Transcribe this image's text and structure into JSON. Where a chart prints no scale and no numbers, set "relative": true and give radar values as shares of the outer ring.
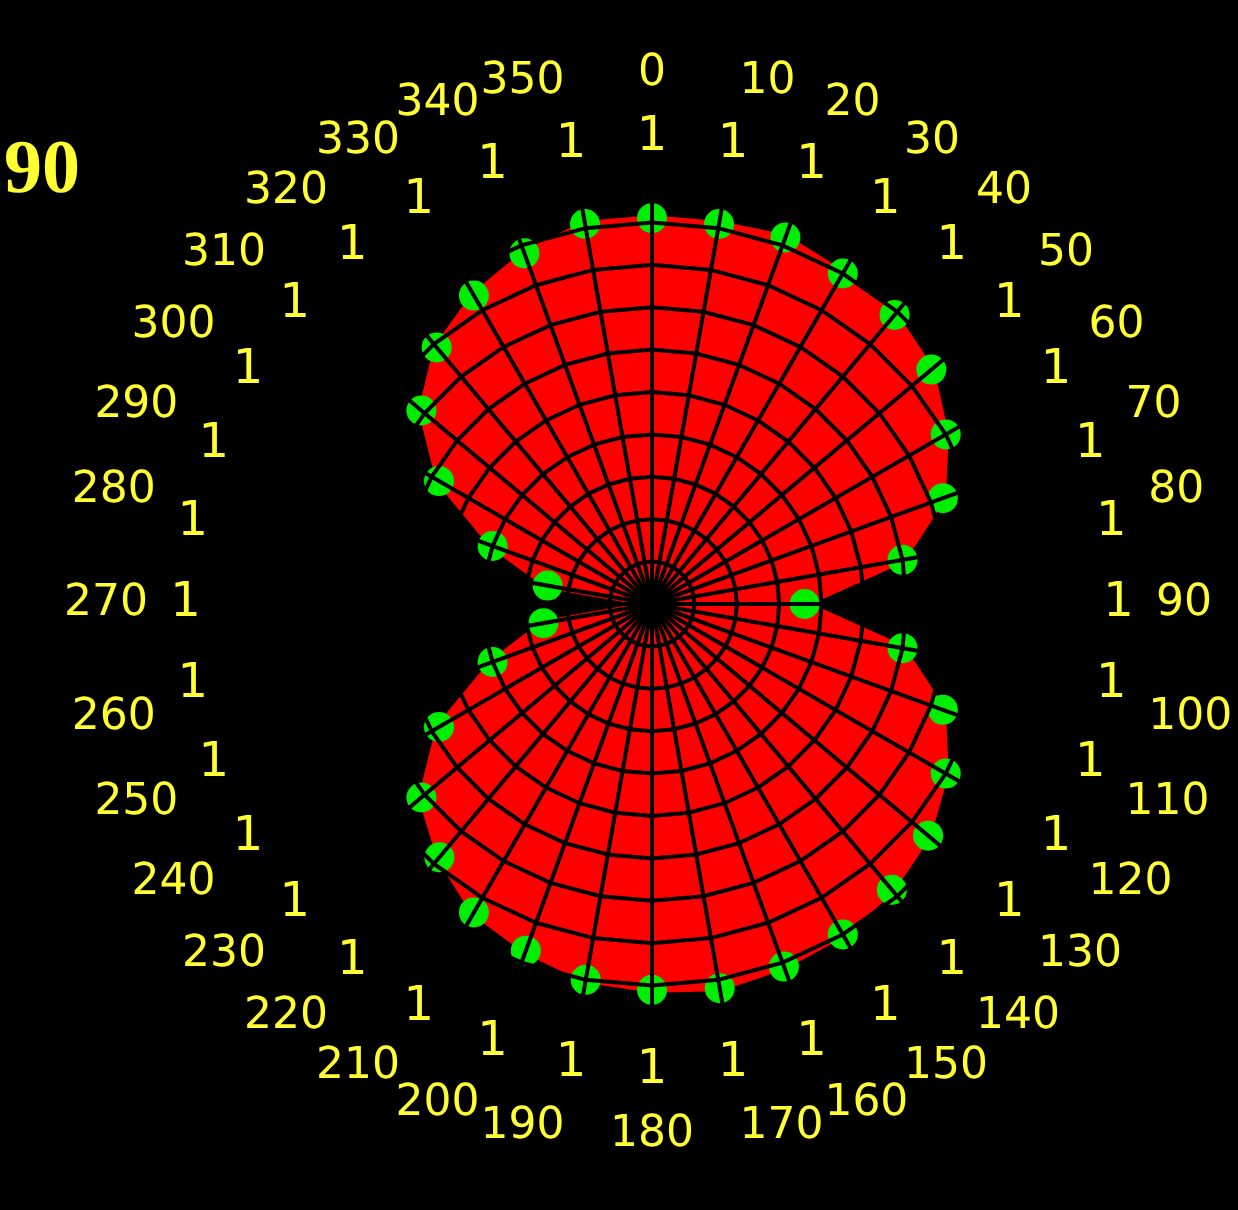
{
  "chart_data": {
    "type": "radar",
    "relative": true,
    "categories": [
      "0",
      "10",
      "20",
      "30",
      "40",
      "50",
      "60",
      "70",
      "80",
      "90",
      "100",
      "110",
      "120",
      "130",
      "140",
      "150",
      "160",
      "170",
      "180",
      "190",
      "200",
      "210",
      "220",
      "230",
      "240",
      "250",
      "260",
      "270",
      "280",
      "290",
      "300",
      "310",
      "320",
      "330",
      "340",
      "350"
    ],
    "series": [
      {
        "color": "#ff0000",
        "values": [
          0.91,
          0.91,
          0.92,
          0.9,
          0.89,
          0.86,
          0.8,
          0.73,
          0.6,
          0.36,
          0.6,
          0.73,
          0.8,
          0.85,
          0.88,
          0.9,
          0.91,
          0.92,
          0.91,
          0.9,
          0.87,
          0.84,
          0.78,
          0.71,
          0.58,
          0.4,
          0.26,
          0,
          0.25,
          0.4,
          0.58,
          0.71,
          0.79,
          0.84,
          0.88,
          0.91
        ]
      }
    ],
    "marker": "circle",
    "grid": true,
    "annotations": [
      "90",
      "1",
      "1",
      "1",
      "1",
      "1",
      "1",
      "1",
      "1",
      "1",
      "1",
      "1",
      "1",
      "1",
      "1",
      "1",
      "1",
      "1",
      "1",
      "1",
      "1",
      "1",
      "1",
      "1",
      "1",
      "1",
      "1",
      "1",
      "1",
      "1",
      "1",
      "1",
      "1",
      "1",
      "1",
      "1",
      "1"
    ]
  }
}
